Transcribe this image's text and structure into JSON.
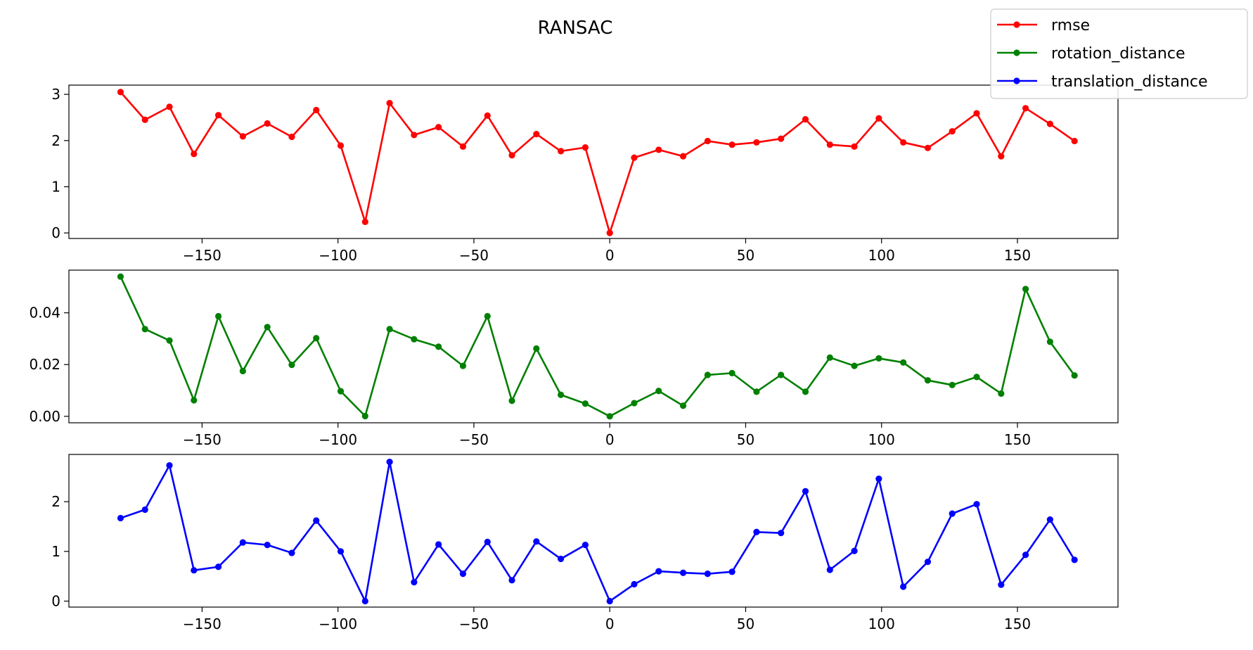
{
  "chart_data": {
    "type": "line",
    "title": "RANSAC",
    "legend": {
      "placement": "top-right",
      "entries": [
        "rmse",
        "rotation_distance",
        "translation_distance"
      ]
    },
    "x": [
      -180,
      -171,
      -162,
      -153,
      -144,
      -135,
      -126,
      -117,
      -108,
      -99,
      -90,
      -81,
      -72,
      -63,
      -54,
      -45,
      -36,
      -27,
      -18,
      -9,
      0,
      9,
      18,
      27,
      36,
      45,
      54,
      63,
      72,
      81,
      90,
      99,
      108,
      117,
      126,
      135,
      144,
      153,
      162,
      171
    ],
    "grid": false,
    "subplots": [
      {
        "series_name": "rmse",
        "color": "#ff0000",
        "ylim": [
          -0.12,
          3.2
        ],
        "xlim": [
          -199,
          187
        ],
        "yticks": [
          0,
          1,
          2,
          3
        ],
        "ytick_labels": [
          "0",
          "1",
          "2",
          "3"
        ],
        "values": [
          3.05,
          2.45,
          2.73,
          1.71,
          2.55,
          2.09,
          2.37,
          2.08,
          2.66,
          1.89,
          0.24,
          2.81,
          2.12,
          2.29,
          1.87,
          2.54,
          1.68,
          2.14,
          1.77,
          1.85,
          0.0,
          1.63,
          1.8,
          1.66,
          1.99,
          1.91,
          1.96,
          2.04,
          2.46,
          1.91,
          1.87,
          2.48,
          1.96,
          1.84,
          2.2,
          2.59,
          1.66,
          2.7,
          2.36,
          1.99
        ]
      },
      {
        "series_name": "rotation_distance",
        "color": "#008000",
        "ylim": [
          -0.0025,
          0.0565
        ],
        "xlim": [
          -199,
          187
        ],
        "yticks": [
          0,
          0.02,
          0.04
        ],
        "ytick_labels": [
          "0.00",
          "0.02",
          "0.04"
        ],
        "values": [
          0.054,
          0.0337,
          0.0293,
          0.0062,
          0.0387,
          0.0175,
          0.0345,
          0.0199,
          0.0302,
          0.0097,
          0.0001,
          0.0337,
          0.0298,
          0.0269,
          0.0195,
          0.0387,
          0.006,
          0.0262,
          0.0083,
          0.0049,
          0.0,
          0.0051,
          0.0098,
          0.0041,
          0.016,
          0.0167,
          0.0095,
          0.016,
          0.0095,
          0.0227,
          0.0195,
          0.0224,
          0.0208,
          0.0139,
          0.0121,
          0.0152,
          0.0088,
          0.0492,
          0.0288,
          0.0158
        ]
      },
      {
        "series_name": "translation_distance",
        "color": "#0000ff",
        "ylim": [
          -0.12,
          2.95
        ],
        "xlim": [
          -199,
          187
        ],
        "yticks": [
          0,
          1,
          2
        ],
        "ytick_labels": [
          "0",
          "1",
          "2"
        ],
        "values": [
          1.67,
          1.84,
          2.73,
          0.62,
          0.69,
          1.18,
          1.13,
          0.97,
          1.62,
          1.0,
          0.0,
          2.8,
          0.38,
          1.14,
          0.55,
          1.19,
          0.42,
          1.2,
          0.85,
          1.13,
          0.0,
          0.34,
          0.6,
          0.57,
          0.55,
          0.59,
          1.39,
          1.37,
          2.21,
          0.63,
          1.01,
          2.46,
          0.29,
          0.79,
          1.76,
          1.95,
          0.33,
          0.93,
          1.64,
          0.83
        ]
      }
    ],
    "xticks": [
      -150,
      -100,
      -50,
      0,
      50,
      100,
      150
    ],
    "xtick_labels": [
      "−150",
      "−100",
      "−50",
      "0",
      "50",
      "100",
      "150"
    ]
  }
}
